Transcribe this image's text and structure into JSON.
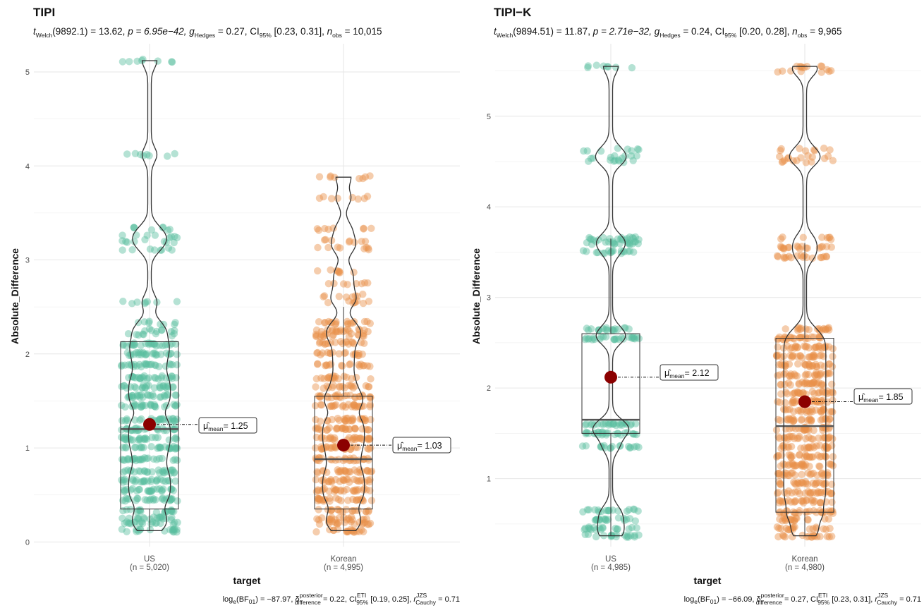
{
  "chart_data": [
    {
      "type": "violin",
      "title": "TIPI",
      "subtitle": {
        "stat_name": "t",
        "stat_sub": "Welch",
        "df": "(9892.1) = 13.62, ",
        "p": "p = 6.95e−42, ",
        "es_name": "g",
        "es_sub": "Hedges",
        "es_val": " = 0.27, CI",
        "ci_sub": "95%",
        "ci_val": " [0.23, 0.31], ",
        "n_name": "n",
        "n_sub": "obs",
        "n_val": " = 10,015"
      },
      "caption": {
        "a": "log",
        "a_sub": "e",
        "b": "(BF",
        "b_sub": "01",
        "c": ") = −87.97, ",
        "d": "δ",
        "d_sup": "posterior",
        "d_sub": "difference",
        "e": " = 0.22, CI",
        "e_sup": "ETI",
        "e_sub": "95%",
        "f": " [0.19, 0.25], ",
        "g": "r",
        "g_sup": "JZS",
        "g_sub": "Cauchy",
        "h": " = 0.71"
      },
      "xlabel": "target",
      "ylabel": "Absolute_Difference",
      "ylim": [
        -0.05,
        5.3
      ],
      "yticks": [
        0,
        1,
        2,
        3,
        4,
        5
      ],
      "grid": true,
      "groups": [
        {
          "name": "US",
          "n_label": "(n = 5,020)",
          "mean": 1.25,
          "mean_label": "= 1.25",
          "box": {
            "q1": 0.35,
            "median": 1.2,
            "q3": 2.13,
            "whisker_low": 0.12,
            "whisker_high": 2.13
          },
          "violin_range": [
            0.12,
            5.12
          ],
          "levels": [
            0.12,
            0.2,
            0.25,
            0.33,
            0.45,
            0.55,
            0.65,
            0.75,
            0.88,
            1.0,
            1.1,
            1.2,
            1.3,
            1.45,
            1.55,
            1.65,
            1.75,
            1.88,
            2.0,
            2.1,
            2.2,
            2.25,
            2.33,
            2.55,
            3.12,
            3.2,
            3.25,
            3.33,
            4.12,
            5.12
          ],
          "color": "#1B9E77"
        },
        {
          "name": "Korean",
          "n_label": "(n = 4,995)",
          "mean": 1.03,
          "mean_label": "= 1.03",
          "box": {
            "q1": 0.35,
            "median": 0.88,
            "q3": 1.55,
            "whisker_low": 0.12,
            "whisker_high": 2.5
          },
          "violin_range": [
            0.12,
            3.88
          ],
          "levels": [
            0.12,
            0.2,
            0.25,
            0.33,
            0.45,
            0.55,
            0.65,
            0.75,
            0.88,
            1.0,
            1.1,
            1.2,
            1.3,
            1.45,
            1.55,
            1.65,
            1.75,
            1.88,
            2.0,
            2.12,
            2.2,
            2.25,
            2.33,
            2.55,
            2.62,
            2.75,
            2.88,
            3.12,
            3.2,
            3.33,
            3.66,
            3.88
          ],
          "color": "#D95F02"
        }
      ]
    },
    {
      "type": "violin",
      "title": "TIPI−K",
      "subtitle": {
        "stat_name": "t",
        "stat_sub": "Welch",
        "df": "(9894.51) = 11.87, ",
        "p": "p = 2.71e−32, ",
        "es_name": "g",
        "es_sub": "Hedges",
        "es_val": " = 0.24, CI",
        "ci_sub": "95%",
        "ci_val": " [0.20, 0.28], ",
        "n_name": "n",
        "n_sub": "obs",
        "n_val": " = 9,965"
      },
      "caption": {
        "a": "log",
        "a_sub": "e",
        "b": "(BF",
        "b_sub": "01",
        "c": ") = −66.09, ",
        "d": "δ",
        "d_sup": "posterior",
        "d_sub": "difference",
        "e": " = 0.27, CI",
        "e_sup": "ETI",
        "e_sub": "95%",
        "f": " [0.23, 0.31], ",
        "g": "r",
        "g_sup": "JZS",
        "g_sub": "Cauchy",
        "h": " = 0.71"
      },
      "xlabel": "target",
      "ylabel": "Absolute_Difference",
      "ylim": [
        0.25,
        5.8
      ],
      "yticks": [
        1,
        2,
        3,
        4,
        5
      ],
      "grid": true,
      "groups": [
        {
          "name": "US",
          "n_label": "(n = 4,985)",
          "mean": 2.12,
          "mean_label": "= 2.12",
          "box": {
            "q1": 1.5,
            "median": 1.65,
            "q3": 2.6,
            "whisker_low": 0.37,
            "whisker_high": 3.65
          },
          "violin_range": [
            0.37,
            5.55
          ],
          "levels": [
            0.37,
            0.45,
            0.55,
            0.65,
            1.35,
            1.5,
            1.6,
            2.55,
            2.65,
            3.5,
            3.6,
            3.65,
            4.5,
            4.55,
            4.63,
            5.55
          ],
          "color": "#1B9E77"
        },
        {
          "name": "Korean",
          "n_label": "(n = 4,980)",
          "mean": 1.85,
          "mean_label": "= 1.85",
          "box": {
            "q1": 0.63,
            "median": 1.58,
            "q3": 2.55,
            "whisker_low": 0.37,
            "whisker_high": 3.6
          },
          "violin_range": [
            0.37,
            5.55
          ],
          "levels": [
            0.37,
            0.45,
            0.55,
            0.63,
            0.75,
            0.85,
            0.95,
            1.05,
            1.15,
            1.25,
            1.35,
            1.45,
            1.55,
            1.65,
            1.75,
            1.85,
            1.95,
            2.05,
            2.15,
            2.25,
            2.35,
            2.45,
            2.55,
            2.65,
            3.45,
            3.55,
            3.65,
            4.5,
            4.55,
            4.63,
            5.5,
            5.55
          ],
          "color": "#D95F02"
        }
      ]
    }
  ]
}
